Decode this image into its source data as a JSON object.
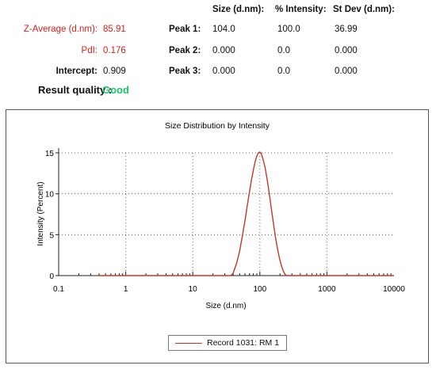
{
  "summary": {
    "col_headers": [
      "Size (d.nm):",
      "% Intensity:",
      "St Dev (d.nm):"
    ],
    "z_average": {
      "label": "Z-Average (d.nm):",
      "value": "85.91"
    },
    "pdi": {
      "label": "PdI:",
      "value": "0.176"
    },
    "intercept": {
      "label": "Intercept:",
      "value": "0.909"
    },
    "peaks": [
      {
        "label": "Peak 1:",
        "size": "104.0",
        "intensity": "100.0",
        "stdev": "36.99"
      },
      {
        "label": "Peak 2:",
        "size": "0.000",
        "intensity": "0.0",
        "stdev": "0.000"
      },
      {
        "label": "Peak 3:",
        "size": "0.000",
        "intensity": "0.0",
        "stdev": "0.000"
      }
    ],
    "result_quality": {
      "label": "Result quality :",
      "value": "Good"
    }
  },
  "colors": {
    "series": "#c0392b",
    "label_red": "#cc2222",
    "good": "#1fbf6a"
  },
  "chart_data": {
    "type": "line",
    "title": "Size Distribution by Intensity",
    "xlabel": "Size (d.nm)",
    "ylabel": "Intensity (Percent)",
    "xscale": "log",
    "xlim": [
      0.1,
      10000
    ],
    "ylim": [
      0,
      15
    ],
    "xticks": [
      "0.1",
      "1",
      "10",
      "100",
      "1000",
      "10000"
    ],
    "yticks": [
      "0",
      "5",
      "10",
      "15"
    ],
    "grid": true,
    "legend_position": "bottom-center",
    "series": [
      {
        "name": "Record 1031: RM 1",
        "color": "#c0392b",
        "points": [
          [
            0.4,
            0
          ],
          [
            1,
            0
          ],
          [
            10,
            0
          ],
          [
            30,
            0
          ],
          [
            37,
            0
          ],
          [
            40,
            0.3
          ],
          [
            45,
            1.5
          ],
          [
            50,
            3.0
          ],
          [
            55,
            4.9
          ],
          [
            60,
            6.7
          ],
          [
            65,
            8.6
          ],
          [
            70,
            10.2
          ],
          [
            75,
            11.7
          ],
          [
            80,
            12.9
          ],
          [
            85,
            13.9
          ],
          [
            90,
            14.6
          ],
          [
            95,
            15.0
          ],
          [
            100,
            15.1
          ],
          [
            105,
            14.9
          ],
          [
            110,
            14.4
          ],
          [
            120,
            13.2
          ],
          [
            130,
            11.5
          ],
          [
            140,
            9.7
          ],
          [
            150,
            7.9
          ],
          [
            160,
            6.3
          ],
          [
            170,
            4.8
          ],
          [
            180,
            3.6
          ],
          [
            195,
            2.2
          ],
          [
            210,
            1.2
          ],
          [
            225,
            0.5
          ],
          [
            240,
            0.1
          ],
          [
            250,
            0
          ],
          [
            500,
            0
          ],
          [
            1000,
            0
          ],
          [
            5000,
            0
          ],
          [
            10000,
            0
          ]
        ]
      }
    ]
  }
}
